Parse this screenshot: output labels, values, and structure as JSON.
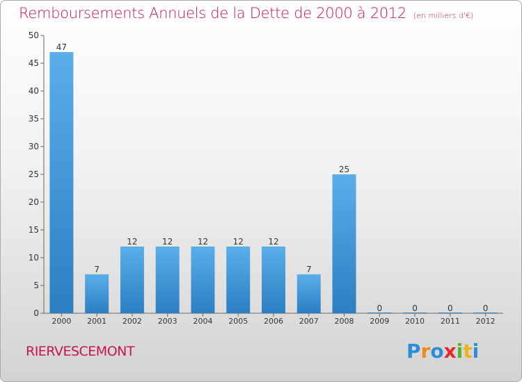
{
  "header": {
    "title": "Remboursements Annuels de la Dette de 2000 à 2012",
    "unit": "(en milliers d'€)"
  },
  "footer": {
    "commune": "RIERVESCEMONT",
    "logo_text": "Proxiti"
  },
  "colors": {
    "accent": "#c8144f",
    "bar_light": "#5aaeea",
    "bar_dark": "#2b7fc2"
  },
  "chart_data": {
    "type": "bar",
    "categories": [
      "2000",
      "2001",
      "2002",
      "2003",
      "2004",
      "2005",
      "2006",
      "2007",
      "2008",
      "2009",
      "2010",
      "2011",
      "2012"
    ],
    "values": [
      47,
      7,
      12,
      12,
      12,
      12,
      12,
      7,
      25,
      0,
      0,
      0,
      0
    ],
    "ylim": [
      0,
      50
    ],
    "yticks": [
      0,
      5,
      10,
      15,
      20,
      25,
      30,
      35,
      40,
      45,
      50
    ],
    "grid": false,
    "legend": "none"
  }
}
